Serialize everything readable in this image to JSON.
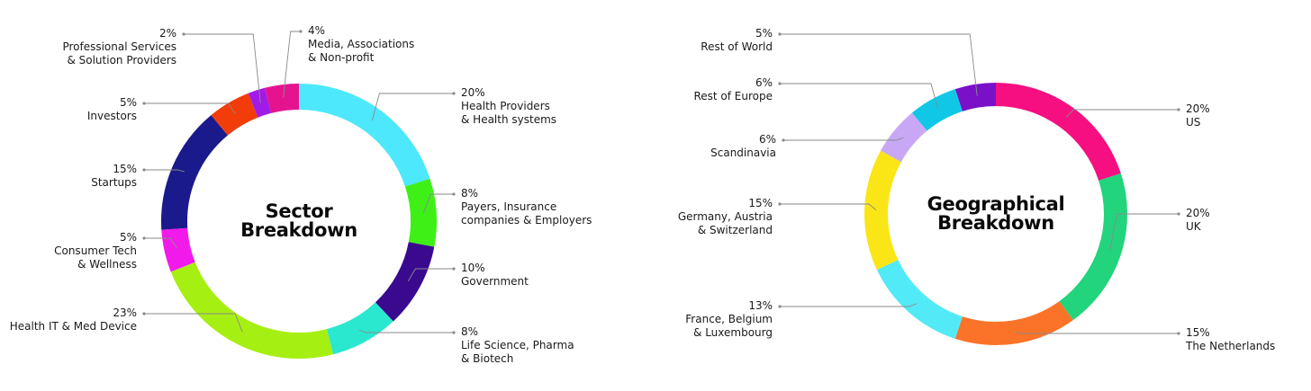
{
  "chart_data": [
    {
      "type": "pie",
      "style": "donut",
      "title": [
        "Sector",
        "Breakdown"
      ],
      "slices": [
        {
          "pct": "20%",
          "value": 20,
          "label": [
            "Health Providers",
            "& Health systems"
          ],
          "color": "#4de8fb"
        },
        {
          "pct": "8%",
          "value": 8,
          "label": [
            "Payers, Insurance",
            "companies & Employers"
          ],
          "color": "#3ef016"
        },
        {
          "pct": "10%",
          "value": 10,
          "label": [
            "Government"
          ],
          "color": "#3a0a8e"
        },
        {
          "pct": "8%",
          "value": 8,
          "label": [
            "Life Science, Pharma",
            "& Biotech"
          ],
          "color": "#2ae8cf"
        },
        {
          "pct": "23%",
          "value": 23,
          "label": [
            "Health IT & Med Device"
          ],
          "color": "#a6ef12"
        },
        {
          "pct": "5%",
          "value": 5,
          "label": [
            "Consumer Tech",
            "& Wellness"
          ],
          "color": "#f21aea"
        },
        {
          "pct": "15%",
          "value": 15,
          "label": [
            "Startups"
          ],
          "color": "#1a1a8c"
        },
        {
          "pct": "5%",
          "value": 5,
          "label": [
            "Investors"
          ],
          "color": "#f23c0a"
        },
        {
          "pct": "2%",
          "value": 2,
          "label": [
            "Professional Services",
            "& Solution Providers"
          ],
          "color": "#a21ae8"
        },
        {
          "pct": "4%",
          "value": 4,
          "label": [
            "Media, Associations",
            "& Non-profit"
          ],
          "color": "#e6138f"
        }
      ]
    },
    {
      "type": "pie",
      "style": "donut",
      "title": [
        "Geographical",
        "Breakdown"
      ],
      "slices": [
        {
          "pct": "20%",
          "value": 20,
          "label": [
            "US"
          ],
          "color": "#f50f80"
        },
        {
          "pct": "20%",
          "value": 20,
          "label": [
            "UK"
          ],
          "color": "#22d47c"
        },
        {
          "pct": "15%",
          "value": 15,
          "label": [
            "The Netherlands"
          ],
          "color": "#fb7328"
        },
        {
          "pct": "13%",
          "value": 13,
          "label": [
            "France, Belgium",
            "& Luxembourg"
          ],
          "color": "#52eaf6"
        },
        {
          "pct": "15%",
          "value": 15,
          "label": [
            "Germany, Austria",
            "& Switzerland"
          ],
          "color": "#fae616"
        },
        {
          "pct": "6%",
          "value": 6,
          "label": [
            "Scandinavia"
          ],
          "color": "#c8a8f5"
        },
        {
          "pct": "6%",
          "value": 6,
          "label": [
            "Rest of Europe"
          ],
          "color": "#10c8e6"
        },
        {
          "pct": "5%",
          "value": 5,
          "label": [
            "Rest of World"
          ],
          "color": "#7a10c8"
        }
      ]
    }
  ]
}
